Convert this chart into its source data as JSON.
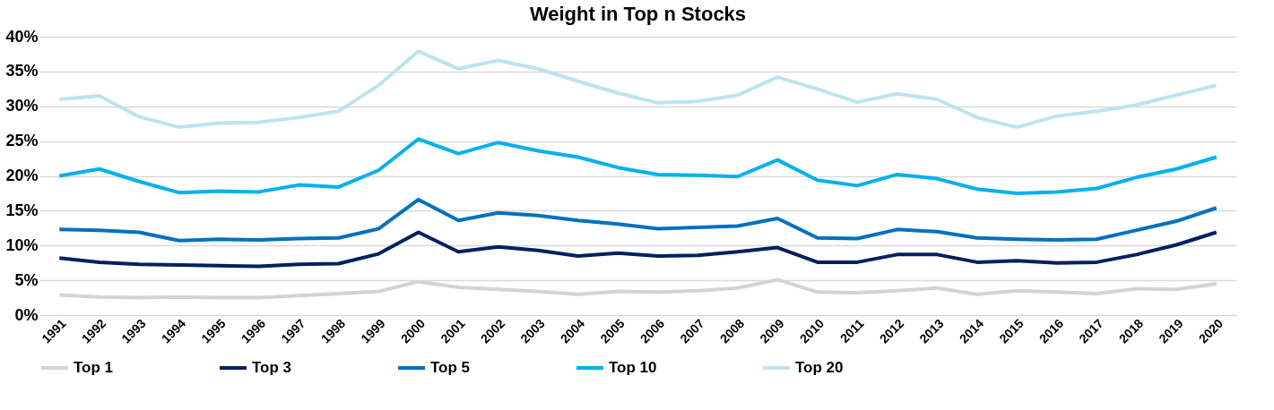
{
  "chart_data": {
    "type": "line",
    "title": "Weight in Top n Stocks",
    "categories": [
      "1991",
      "1992",
      "1993",
      "1994",
      "1995",
      "1996",
      "1997",
      "1998",
      "1999",
      "2000",
      "2001",
      "2002",
      "2003",
      "2004",
      "2005",
      "2006",
      "2007",
      "2008",
      "2009",
      "2010",
      "2011",
      "2012",
      "2013",
      "2014",
      "2015",
      "2016",
      "2017",
      "2018",
      "2019",
      "2020"
    ],
    "series": [
      {
        "name": "Top 1",
        "color": "#d3d3d3",
        "values": [
          2.9,
          2.6,
          2.5,
          2.6,
          2.5,
          2.5,
          2.8,
          3.1,
          3.4,
          4.8,
          4.0,
          3.7,
          3.4,
          3.0,
          3.4,
          3.3,
          3.5,
          3.9,
          5.1,
          3.3,
          3.2,
          3.5,
          3.9,
          3.0,
          3.5,
          3.3,
          3.1,
          3.8,
          3.7,
          4.5
        ]
      },
      {
        "name": "Top 3",
        "color": "#002060",
        "values": [
          8.2,
          7.6,
          7.3,
          7.2,
          7.1,
          7.0,
          7.3,
          7.4,
          8.8,
          11.9,
          9.1,
          9.8,
          9.3,
          8.5,
          8.9,
          8.5,
          8.6,
          9.1,
          9.7,
          7.6,
          7.6,
          8.7,
          8.7,
          7.6,
          7.8,
          7.5,
          7.6,
          8.7,
          10.1,
          11.9
        ]
      },
      {
        "name": "Top 5",
        "color": "#0070c0",
        "values": [
          12.3,
          12.2,
          11.9,
          10.7,
          10.9,
          10.8,
          11.0,
          11.1,
          12.4,
          16.6,
          13.6,
          14.7,
          14.3,
          13.6,
          13.1,
          12.4,
          12.6,
          12.8,
          13.9,
          11.1,
          11.0,
          12.3,
          12.0,
          11.1,
          10.9,
          10.8,
          10.9,
          12.2,
          13.5,
          15.4
        ]
      },
      {
        "name": "Top 10",
        "color": "#00b0f0",
        "values": [
          20.0,
          21.0,
          19.2,
          17.6,
          17.8,
          17.7,
          18.7,
          18.4,
          20.8,
          25.3,
          23.2,
          24.8,
          23.6,
          22.7,
          21.2,
          20.2,
          20.1,
          19.9,
          22.3,
          19.4,
          18.6,
          20.2,
          19.6,
          18.1,
          17.5,
          17.7,
          18.2,
          19.8,
          21.0,
          22.7
        ]
      },
      {
        "name": "Top 20",
        "color": "#bde3ef",
        "values": [
          31.0,
          31.5,
          28.5,
          27.0,
          27.6,
          27.7,
          28.4,
          29.3,
          33.0,
          37.9,
          35.4,
          36.6,
          35.4,
          33.6,
          31.9,
          30.5,
          30.7,
          31.6,
          34.2,
          32.5,
          30.6,
          31.8,
          31.0,
          28.4,
          27.0,
          28.6,
          29.3,
          30.2,
          31.6,
          33.0
        ]
      }
    ],
    "ylim": [
      0,
      40
    ],
    "yticks": [
      {
        "value": 0,
        "label": "0%"
      },
      {
        "value": 5,
        "label": "5%"
      },
      {
        "value": 10,
        "label": "10%"
      },
      {
        "value": 15,
        "label": "15%"
      },
      {
        "value": 20,
        "label": "20%"
      },
      {
        "value": 25,
        "label": "25%"
      },
      {
        "value": 30,
        "label": "30%"
      },
      {
        "value": 35,
        "label": "35%"
      },
      {
        "value": 40,
        "label": "40%"
      }
    ],
    "grid": "y",
    "legend": "bottom"
  }
}
